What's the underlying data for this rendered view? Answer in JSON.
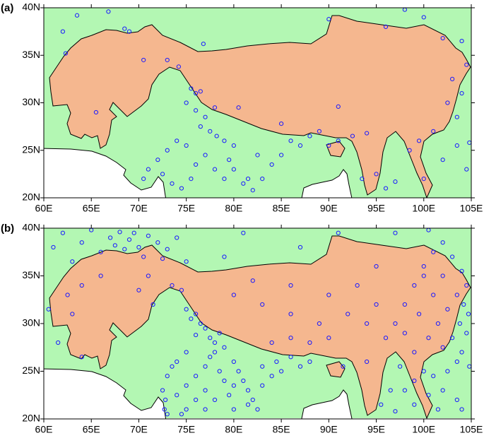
{
  "chart_data": [
    {
      "type": "scatter",
      "title": "(a)",
      "xlim": [
        60,
        105
      ],
      "ylim": [
        20,
        40
      ],
      "xticks": [
        {
          "value": 60,
          "label": "60E"
        },
        {
          "value": 65,
          "label": "65E"
        },
        {
          "value": 70,
          "label": "70E"
        },
        {
          "value": 75,
          "label": "75E"
        },
        {
          "value": 80,
          "label": "80E"
        },
        {
          "value": 85,
          "label": "85E"
        },
        {
          "value": 90,
          "label": "90E"
        },
        {
          "value": 95,
          "label": "95E"
        },
        {
          "value": 100,
          "label": "100E"
        },
        {
          "value": 105,
          "label": "105E"
        }
      ],
      "yticks": [
        {
          "value": 20,
          "label": "20N"
        },
        {
          "value": 25,
          "label": "25N"
        },
        {
          "value": 30,
          "label": "30N"
        },
        {
          "value": 35,
          "label": "35N"
        },
        {
          "value": 40,
          "label": "40N"
        }
      ],
      "series": [
        {
          "color": "#1a1aff",
          "x": [
            62,
            63.5,
            66.8,
            62.3,
            65.5,
            68.5,
            73,
            74.2,
            75.5,
            76,
            76.5,
            75,
            76,
            77,
            78,
            76.5,
            77.5,
            78.2,
            79,
            80,
            75,
            74,
            73,
            72,
            71,
            70.5,
            72.5,
            73.5,
            74.5,
            75.5,
            76,
            77,
            78,
            79,
            80,
            81,
            81.5,
            82,
            83,
            84,
            85,
            86,
            87,
            88,
            89,
            90,
            91,
            92.5,
            94,
            91,
            80.5,
            85,
            93.5,
            95,
            96,
            98,
            100,
            102,
            104,
            104.5,
            103,
            104,
            102.5,
            103.5,
            101,
            99.5,
            98.5,
            102,
            103.5,
            104.8,
            104.5,
            100,
            97,
            96,
            90,
            76.8,
            70.5,
            69,
            79.5,
            82.5
          ],
          "values": [
            37.5,
            39.2,
            39.6,
            35.2,
            29,
            37.8,
            34.5,
            33.8,
            31.5,
            31,
            31.2,
            30,
            29.2,
            28.5,
            29.5,
            27.5,
            27,
            26.5,
            26,
            25.5,
            25.5,
            26,
            25,
            24,
            23,
            22,
            22.5,
            21.5,
            21,
            22,
            23.5,
            24.5,
            23,
            22,
            23,
            21.5,
            22,
            20.8,
            22,
            23.5,
            24.5,
            26,
            25.5,
            26.5,
            27,
            25.5,
            26,
            26.5,
            26.8,
            29.6,
            29.5,
            27.8,
            22,
            22.5,
            21,
            39.8,
            39,
            36.8,
            36.5,
            34,
            32.5,
            31,
            30,
            28.5,
            27,
            26,
            25,
            24,
            25.5,
            25.8,
            23,
            22,
            21.7,
            38,
            38.8,
            36.2,
            34.5,
            37.5,
            24,
            24.5
          ]
        }
      ]
    },
    {
      "type": "scatter",
      "title": "(b)",
      "xlim": [
        60,
        105
      ],
      "ylim": [
        20,
        40
      ],
      "xticks": [
        {
          "value": 60,
          "label": "60E"
        },
        {
          "value": 65,
          "label": "65E"
        },
        {
          "value": 70,
          "label": "70E"
        },
        {
          "value": 75,
          "label": "75E"
        },
        {
          "value": 80,
          "label": "80E"
        },
        {
          "value": 85,
          "label": "85E"
        },
        {
          "value": 90,
          "label": "90E"
        },
        {
          "value": 95,
          "label": "95E"
        },
        {
          "value": 100,
          "label": "100E"
        },
        {
          "value": 105,
          "label": "105E"
        }
      ],
      "yticks": [
        {
          "value": 20,
          "label": "20N"
        },
        {
          "value": 25,
          "label": "25N"
        },
        {
          "value": 30,
          "label": "30N"
        },
        {
          "value": 35,
          "label": "35N"
        },
        {
          "value": 40,
          "label": "40N"
        }
      ],
      "series": [
        {
          "color": "#1a1aff",
          "x": [
            61,
            62,
            63,
            64,
            65,
            66,
            67,
            67.5,
            68,
            68.5,
            69,
            69.5,
            70,
            70.5,
            71,
            72,
            72.5,
            73,
            74,
            75,
            62.5,
            63,
            61.5,
            64,
            60.5,
            66,
            70,
            71.5,
            73.5,
            74.5,
            75,
            75.5,
            76,
            76.5,
            77,
            77.5,
            78,
            78.5,
            79,
            76,
            75,
            74,
            73.5,
            73,
            72.5,
            72.8,
            72.7,
            73,
            74,
            75,
            76,
            77,
            77.5,
            78,
            78.5,
            79,
            80,
            80.5,
            81,
            81.5,
            82,
            82.5,
            81.5,
            83,
            84,
            84.5,
            85,
            86,
            87,
            88,
            79.5,
            80,
            78,
            77,
            76,
            75,
            74.5,
            77,
            80,
            83,
            84,
            86,
            88,
            90,
            89,
            86,
            83,
            80,
            82,
            86,
            90,
            92,
            94,
            95,
            93,
            95,
            96,
            97,
            98,
            99,
            100,
            101,
            102,
            103,
            104,
            104.5,
            103.5,
            104.2,
            104.7,
            103.8,
            104.5,
            103,
            102,
            104,
            103.5,
            104.8,
            102.5,
            101,
            100,
            99,
            98,
            100.5,
            102,
            103.5,
            104,
            101.5,
            99,
            97,
            95.5,
            96.5,
            97.5,
            99,
            100.5,
            101.5,
            102.5,
            101,
            99.5,
            98,
            100,
            102,
            91,
            97,
            100.5,
            79,
            71,
            64,
            81,
            87,
            94,
            91.5
          ],
          "values": [
            38,
            39.5,
            36.5,
            38.5,
            39.8,
            37.5,
            39,
            38.2,
            39.6,
            37.8,
            38.8,
            39.5,
            38,
            37,
            39.2,
            38.5,
            36.8,
            37.8,
            39,
            36.5,
            33,
            31,
            28,
            26.5,
            31.5,
            35,
            33.5,
            32,
            34,
            33.5,
            31.5,
            30.5,
            31,
            30,
            29.5,
            28.5,
            28,
            29,
            27.5,
            28.8,
            27,
            26,
            25.5,
            24.5,
            23,
            22,
            21,
            20.5,
            22.5,
            23.5,
            24.5,
            25.5,
            26.5,
            27,
            25,
            24,
            26,
            25,
            24,
            23,
            22,
            21,
            21.5,
            23.5,
            24.5,
            26,
            25,
            26.5,
            25.5,
            26,
            22.5,
            21,
            22,
            21,
            22,
            21,
            20.5,
            23,
            23.5,
            25.5,
            28,
            28.5,
            28,
            28.5,
            30,
            31,
            32,
            33,
            34.5,
            34,
            33,
            31,
            30,
            32,
            34,
            36,
            28.5,
            30,
            32,
            34,
            36,
            37.5,
            38.5,
            37,
            35.5,
            34,
            33,
            32,
            31,
            30,
            29,
            28.5,
            27.5,
            27,
            26,
            25.5,
            25,
            24.5,
            25,
            24,
            23,
            22.5,
            23,
            22,
            21,
            21,
            21.5,
            20.8,
            21.5,
            23,
            25.5,
            27,
            28.5,
            30,
            31.5,
            33,
            31,
            29,
            35,
            35,
            39.5,
            39.5,
            39.8,
            37,
            35,
            34,
            39.5,
            38,
            26,
            25.5
          ]
        }
      ]
    }
  ]
}
